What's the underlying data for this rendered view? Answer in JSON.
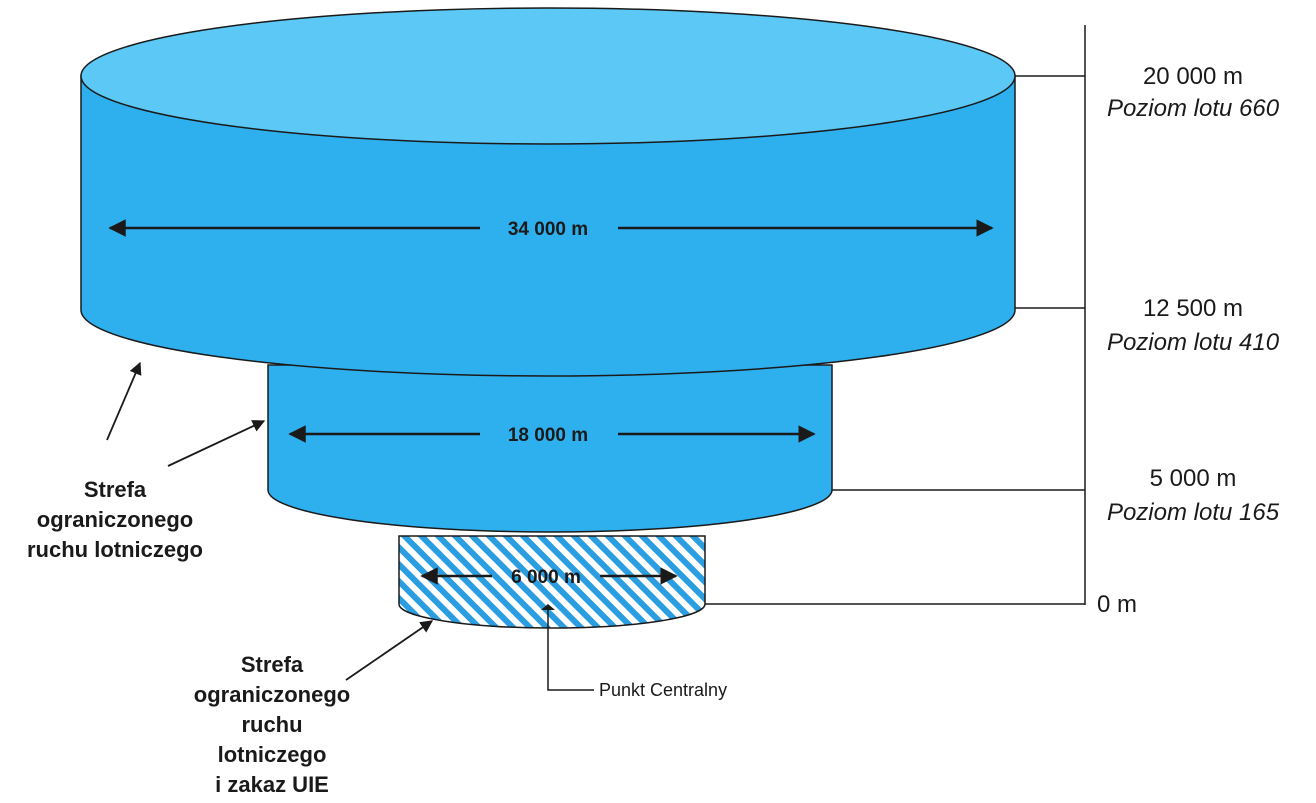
{
  "diagram": {
    "upper_zone": {
      "width_label": "34 000 m"
    },
    "middle_zone": {
      "width_label": "18 000 m"
    },
    "lower_zone": {
      "width_label": "6 000 m"
    },
    "altitudes": [
      {
        "height": "20 000 m",
        "flight_level": "Poziom lotu 660"
      },
      {
        "height": "12 500 m",
        "flight_level": "Poziom lotu 410"
      },
      {
        "height": "5 000 m",
        "flight_level": "Poziom lotu 165"
      },
      {
        "height": "0 m",
        "flight_level": ""
      }
    ],
    "restricted_zone_label": [
      "Strefa",
      "ograniczonego",
      "ruchu lotniczego"
    ],
    "restricted_uav_zone_label": [
      "Strefa",
      "ograniczonego",
      "ruchu",
      "lotniczego",
      "i zakaz UIE"
    ],
    "center_point_label": "Punkt Centralny",
    "colors": {
      "zone_fill": "#2fb0ee",
      "zone_top": "#5cc8f5",
      "hatch": "#2a9ee0",
      "outline": "#1a1a1a"
    }
  }
}
